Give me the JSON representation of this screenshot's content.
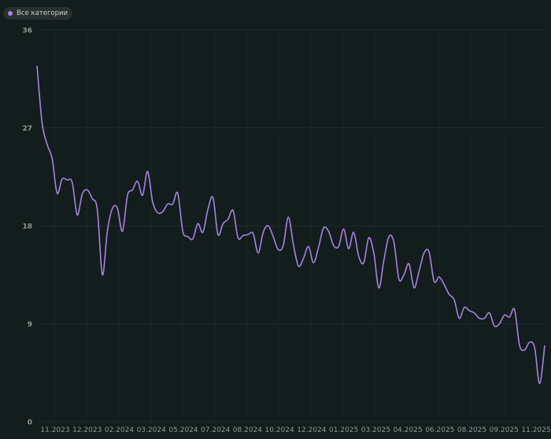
{
  "theme": {
    "background": "#121d1c",
    "grid": "#1f2b29",
    "line": "#a782e6",
    "tick_text": "#8f9995"
  },
  "legend": {
    "label": "Все категории",
    "color": "#a782e6"
  },
  "chart_data": {
    "type": "line",
    "title": "",
    "xlabel": "",
    "ylabel": "",
    "ylim": [
      0,
      36
    ],
    "yticks": [
      0,
      9,
      18,
      27,
      36
    ],
    "grid": true,
    "legend_position": "top-left",
    "x_tick_labels": [
      "11.2023",
      "12.2023",
      "02.2024",
      "03.2024",
      "05.2024",
      "07.2024",
      "08.2024",
      "10.2024",
      "12.2024",
      "01.2025",
      "03.2025",
      "04.2025",
      "06.2025",
      "08.2025",
      "09.2025",
      "11.2025"
    ],
    "series": [
      {
        "name": "Все категории",
        "color": "#a782e6",
        "values": [
          32.7,
          27.5,
          25.5,
          24.2,
          21.0,
          22.3,
          22.2,
          22.0,
          19.0,
          20.9,
          21.3,
          20.5,
          19.5,
          13.5,
          17.5,
          19.6,
          19.6,
          17.5,
          20.8,
          21.3,
          22.1,
          20.8,
          23.0,
          20.2,
          19.2,
          19.3,
          20.0,
          20.0,
          21.0,
          17.5,
          17.0,
          16.8,
          18.2,
          17.4,
          19.5,
          20.6,
          17.2,
          18.2,
          18.6,
          19.4,
          16.9,
          17.1,
          17.2,
          17.3,
          15.5,
          17.4,
          18.0,
          17.0,
          15.8,
          16.2,
          18.8,
          16.3,
          14.3,
          15.0,
          16.1,
          14.6,
          16.0,
          17.8,
          17.5,
          16.2,
          16.1,
          17.7,
          15.9,
          17.4,
          15.2,
          14.6,
          16.9,
          15.5,
          12.3,
          14.8,
          17.0,
          16.5,
          13.1,
          13.5,
          14.5,
          12.3,
          13.8,
          15.5,
          15.6,
          12.9,
          13.3,
          12.6,
          11.7,
          11.2,
          9.5,
          10.5,
          10.2,
          10.0,
          9.5,
          9.5,
          10.0,
          8.8,
          9.0,
          9.8,
          9.6,
          10.3,
          7.0,
          6.6,
          7.3,
          6.8,
          3.5,
          7.0
        ]
      }
    ]
  }
}
